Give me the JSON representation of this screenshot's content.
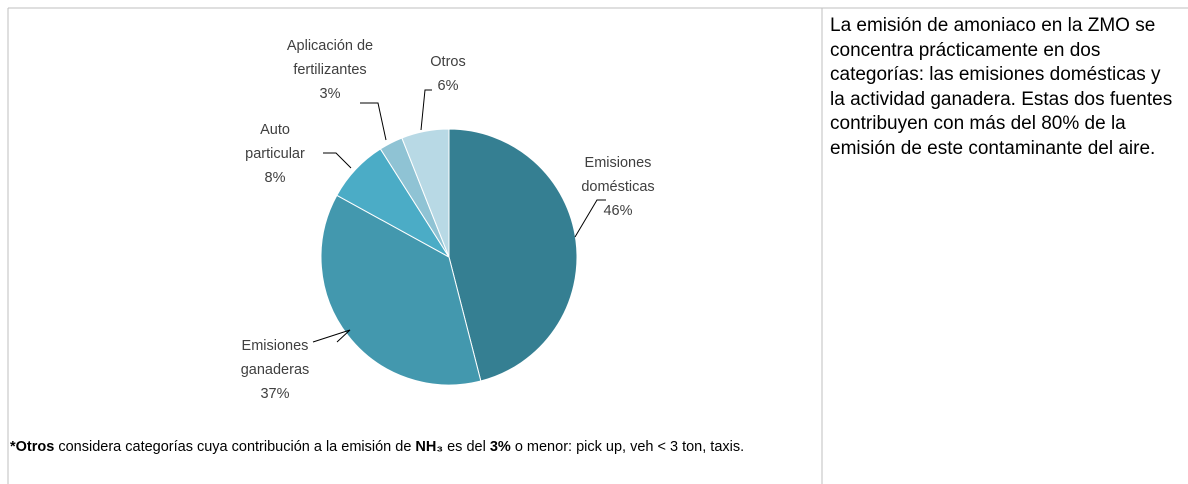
{
  "chart_data": {
    "type": "pie",
    "categories": [
      [
        "Emisiones",
        "domésticas"
      ],
      [
        "Emisiones",
        "ganaderas"
      ],
      [
        "Auto",
        "particular"
      ],
      [
        "Aplicación de",
        "fertilizantes"
      ],
      [
        "Otros"
      ]
    ],
    "values": [
      46,
      37,
      8,
      3,
      6
    ],
    "value_labels": [
      "46%",
      "37%",
      "8%",
      "3%",
      "6%"
    ],
    "colors": [
      "#357f92",
      "#4398ae",
      "#4bacc6",
      "#8fc3d4",
      "#b8d9e5"
    ]
  },
  "footnote": [
    {
      "text": "*Otros",
      "bold": true
    },
    {
      "text": " considera categorías cuya contribución a la emisión de ",
      "bold": false
    },
    {
      "text": "NH₃",
      "bold": true
    },
    {
      "text": " es del ",
      "bold": false
    },
    {
      "text": "3%",
      "bold": true
    },
    {
      "text": " o menor: pick up, veh < 3 ton, taxis.",
      "bold": false
    }
  ],
  "side_text": "La emisión de amoniaco en la ZMO se concentra prácticamente en dos categorías: las emisiones domésticas y la actividad ganadera. Estas dos fuentes contribuyen con más del 80% de la emisión de este contaminante del aire."
}
